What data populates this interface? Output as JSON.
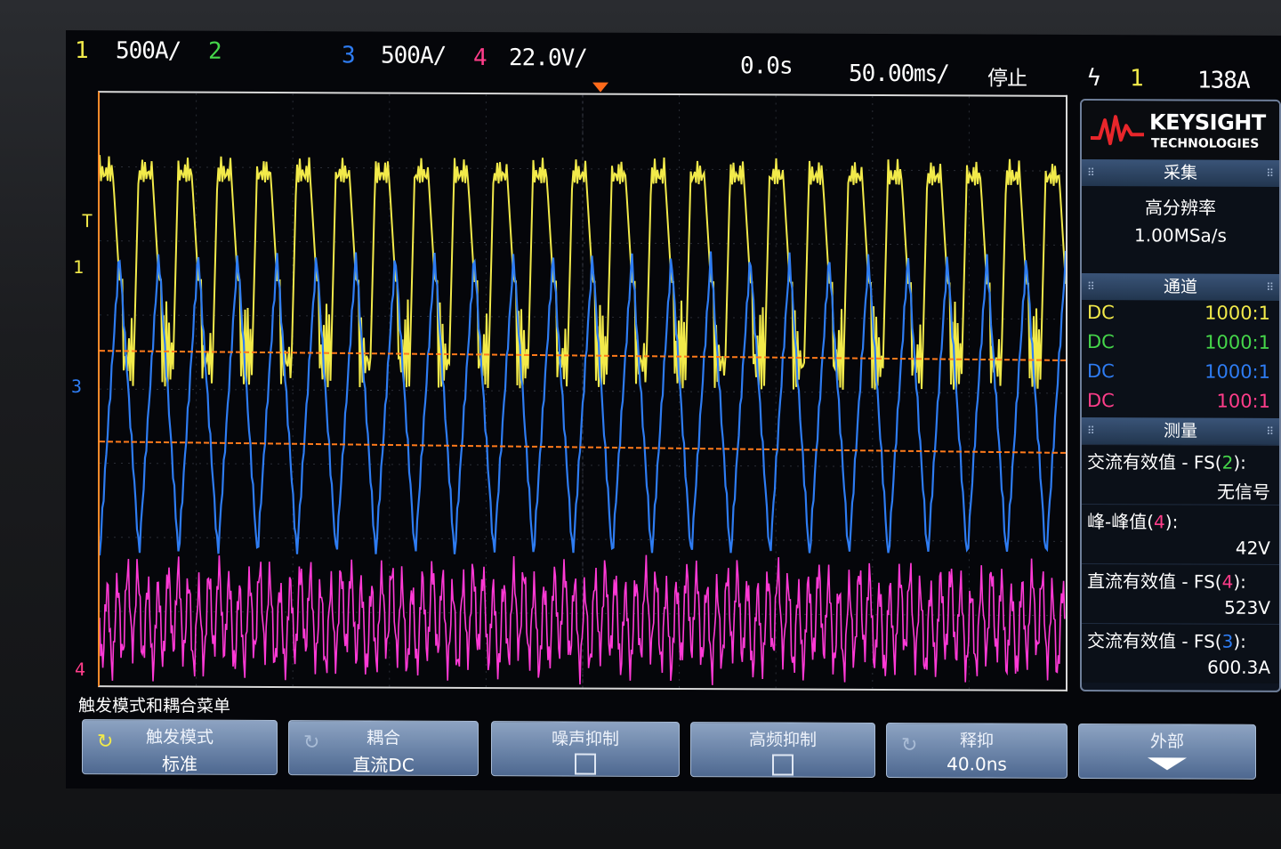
{
  "status_bar": {
    "ch1_num": "1",
    "ch1_scale": "500A/",
    "ch2_num": "2",
    "ch3_num": "3",
    "ch3_scale": "500A/",
    "ch4_num": "4",
    "ch4_scale": "22.0V/",
    "time_delay": "0.0s",
    "time_scale": "50.00㎳/",
    "run_state": "停止",
    "trigger_icon": "ϟ",
    "trigger_source": "1",
    "trigger_level": "138A"
  },
  "plot": {
    "markers": {
      "trig": "T",
      "ch1": "1",
      "ch3": "3",
      "ch4": "4"
    },
    "colors": {
      "ch1": "#f2ea4a",
      "ch3": "#2e7cf2",
      "ch4": "#ff3ad6",
      "cursor": "#ff7a1a"
    }
  },
  "side_panel": {
    "brand": "KEYSIGHT",
    "brand_sub": "TECHNOLOGIES",
    "acquire": {
      "title": "采集",
      "mode": "高分辨率",
      "rate": "1.00MSa/s"
    },
    "channels": {
      "title": "通道",
      "rows": [
        {
          "coupling": "DC",
          "probe": "1000:1"
        },
        {
          "coupling": "DC",
          "probe": "1000:1"
        },
        {
          "coupling": "DC",
          "probe": "1000:1"
        },
        {
          "coupling": "DC",
          "probe": "100:1"
        }
      ]
    },
    "measure": {
      "title": "测量",
      "items": [
        {
          "label_pre": "交流有效值 - FS(",
          "src": "2",
          "label_post": "):",
          "value": "无信号"
        },
        {
          "label_pre": "峰-峰值(",
          "src": "4",
          "label_post": "):",
          "value": "42V"
        },
        {
          "label_pre": "直流有效值 - FS(",
          "src": "4",
          "label_post": "):",
          "value": "523V"
        },
        {
          "label_pre": "交流有效值 - FS(",
          "src": "3",
          "label_post": "):",
          "value": "600.3A"
        }
      ]
    }
  },
  "menu": {
    "title": "触发模式和耦合菜单",
    "softkeys": [
      {
        "label": "触发模式",
        "value": "标准"
      },
      {
        "label": "耦合",
        "value": "直流DC"
      },
      {
        "label": "噪声抑制",
        "value": ""
      },
      {
        "label": "高频抑制",
        "value": ""
      },
      {
        "label": "释抑",
        "value": "40.0ns"
      },
      {
        "label": "外部",
        "value": ""
      }
    ]
  }
}
